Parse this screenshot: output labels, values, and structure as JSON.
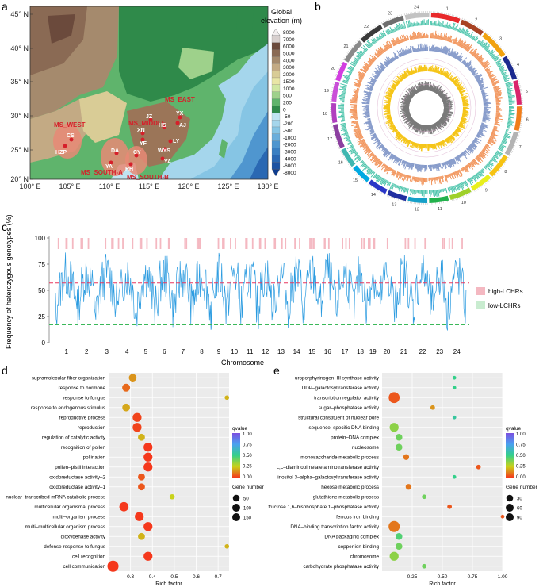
{
  "panels": {
    "a": "a",
    "b": "b",
    "c": "c",
    "d": "d",
    "e": "e"
  },
  "map": {
    "lat_labels": [
      "45° N",
      "40° N",
      "35° N",
      "30° N",
      "25° N",
      "20° N"
    ],
    "lon_labels": [
      "100° E",
      "105° E",
      "110° E",
      "115° E",
      "120° E",
      "125° E",
      "130° E"
    ],
    "legend_title_1": "Global",
    "legend_title_2": "elevation (m)",
    "legend_values": [
      "8000",
      "7000",
      "6000",
      "5000",
      "4000",
      "3000",
      "2000",
      "1500",
      "1000",
      "500",
      "200",
      "0",
      "-50",
      "-200",
      "-500",
      "-1000",
      "-2000",
      "-3000",
      "-4000",
      "-6000",
      "-8000"
    ],
    "legend_colors": [
      "#f3eff0",
      "#d8d0cf",
      "#6b4a3c",
      "#8a6a54",
      "#a58a6d",
      "#c3aa84",
      "#d9cc96",
      "#e9e6a6",
      "#cfe7a2",
      "#9ed18b",
      "#5fb46c",
      "#2f8a4a",
      "#bfe4f1",
      "#a5d6ec",
      "#86c5e4",
      "#6aaedb",
      "#4f96cf",
      "#3a7fc2",
      "#2a68b3",
      "#1c52a2",
      "#0e3c8f"
    ],
    "regions": [
      {
        "label": "MS_WEST",
        "color": "#d61f2a"
      },
      {
        "label": "MS_MIDDLE",
        "color": "#d61f2a"
      },
      {
        "label": "MS_EAST",
        "color": "#d61f2a"
      },
      {
        "label": "MS_SOUTH-A",
        "color": "#d61f2a"
      },
      {
        "label": "MS_SOUTH-B",
        "color": "#d61f2a"
      }
    ],
    "sites": [
      "CS",
      "HZP",
      "DA",
      "YA",
      "RH",
      "CY",
      "XN",
      "YF",
      "JZ",
      "HS",
      "AJ",
      "YX",
      "LY",
      "WYS",
      "YA"
    ]
  },
  "circos": {
    "chromosomes": [
      "1",
      "2",
      "3",
      "4",
      "5",
      "6",
      "7",
      "8",
      "9",
      "10",
      "11",
      "12",
      "13",
      "14",
      "15",
      "16",
      "17",
      "18",
      "19",
      "20",
      "21",
      "22",
      "23",
      "24"
    ],
    "colors": [
      "#e8292b",
      "#a84323",
      "#f1a20f",
      "#1b2a8f",
      "#d9256c",
      "#f07d1a",
      "#b3b3b3",
      "#f6c313",
      "#e8ef1d",
      "#9fd02a",
      "#22b14c",
      "#16a0c8",
      "#212fa0",
      "#2a36c7",
      "#00a9e2",
      "#3fb7b0",
      "#8c3fa0",
      "#b03fbf",
      "#c950d8",
      "#d23fe0",
      "#8a8a8a",
      "#3a3a3a",
      "#6d6d6d",
      "#c3c3c3"
    ],
    "track_colors": [
      "#3cbfa4",
      "#f08a4b",
      "#7f95c7",
      "#f5c518",
      "#7a7a7a"
    ]
  },
  "manhattan": {
    "ylabel": "Frequency of heterozygous genotypes (%)",
    "xlabel": "Chromosome",
    "yticks": [
      "0",
      "25",
      "50",
      "75",
      "100"
    ],
    "legend": [
      {
        "label": "high-LCHRs",
        "color": "#f4b8c1"
      },
      {
        "label": "low-LCHRs",
        "color": "#c9ecd0"
      }
    ],
    "high_threshold": 57,
    "low_threshold": 17,
    "line_color": "#2b9be0"
  },
  "chart_data": [
    {
      "type": "scatter",
      "panel": "d",
      "xlabel": "Rich factor",
      "xlim": [
        0.2,
        0.75
      ],
      "xticks": [
        "0.3",
        "0.4",
        "0.5",
        "0.6",
        "0.7"
      ],
      "categories": [
        "supramolecular fiber organization",
        "response to hormone",
        "response to fungus",
        "response to endogenous stimulus",
        "reproductive process",
        "reproduction",
        "regulation of catalytic activity",
        "recognition of pollen",
        "pollination",
        "pollen–pistil interaction",
        "oxidoreductase activity–2",
        "oxidoreductase activity–1",
        "nuclear–transcribed mRNA catabolic process",
        "multicellular organismal process",
        "multi–organism process",
        "multi–multicellular organism process",
        "dioxygenase activity",
        "defense response to fungus",
        "cell recognition",
        "cell communication"
      ],
      "x": [
        0.31,
        0.28,
        0.74,
        0.28,
        0.33,
        0.33,
        0.35,
        0.38,
        0.38,
        0.38,
        0.35,
        0.35,
        0.49,
        0.27,
        0.34,
        0.38,
        0.35,
        0.74,
        0.38,
        0.22
      ],
      "qvalue": [
        0.15,
        0.08,
        0.2,
        0.18,
        0.02,
        0.02,
        0.2,
        0.0,
        0.0,
        0.0,
        0.05,
        0.05,
        0.25,
        0.0,
        0.0,
        0.0,
        0.2,
        0.2,
        0.0,
        0.0
      ],
      "gene_number": [
        70,
        75,
        15,
        70,
        100,
        100,
        55,
        100,
        100,
        100,
        55,
        55,
        25,
        110,
        100,
        100,
        55,
        15,
        100,
        170
      ],
      "color_legend_title": "qvalue",
      "color_legend_ticks": [
        "1.00",
        "0.75",
        "0.50",
        "0.25",
        "0.00"
      ],
      "size_legend_title": "Gene  number",
      "size_legend": [
        "50",
        "100",
        "150"
      ],
      "size_values": [
        50,
        100,
        150
      ]
    },
    {
      "type": "scatter",
      "panel": "e",
      "xlabel": "Rich factor",
      "xlim": [
        0.0,
        1.0
      ],
      "xticks": [
        "0.25",
        "0.50",
        "0.75",
        "1.00"
      ],
      "categories": [
        "uroporphyrinogen–III synthase activity",
        "UDP–galactosyltransferase activity",
        "transcription regulator activity",
        "sugar–phosphatase activity",
        "structural constituent of nuclear pore",
        "sequence–specific DNA binding",
        "protein–DNA complex",
        "nucleosome",
        "monosaccharide metabolic process",
        "L,L–diaminopimelate aminotransferase activity",
        "inositol 3–alpha–galactosyltransferase activity",
        "hexose metabolic process",
        "glutathione metabolic process",
        "fructose 1,6–bisphosphate 1–phosphatase activity",
        "ferrous iron binding",
        "DNA–binding transcription factor activity",
        "DNA packaging complex",
        "copper ion binding",
        "chromosome",
        "carbohydrate phosphatase activity"
      ],
      "x": [
        0.6,
        0.6,
        0.1,
        0.42,
        0.6,
        0.1,
        0.14,
        0.14,
        0.2,
        0.8,
        0.6,
        0.22,
        0.35,
        0.56,
        1.0,
        0.1,
        0.14,
        0.14,
        0.1,
        0.35
      ],
      "qvalue": [
        0.5,
        0.5,
        0.05,
        0.15,
        0.55,
        0.35,
        0.4,
        0.4,
        0.1,
        0.05,
        0.5,
        0.1,
        0.4,
        0.05,
        0.05,
        0.1,
        0.45,
        0.4,
        0.35,
        0.4
      ],
      "gene_number": [
        5,
        5,
        95,
        10,
        5,
        60,
        30,
        30,
        20,
        10,
        5,
        20,
        10,
        10,
        5,
        100,
        30,
        30,
        60,
        10
      ],
      "color_legend_title": "qvalue",
      "color_legend_ticks": [
        "1.00",
        "0.75",
        "0.50",
        "0.25",
        "0.00"
      ],
      "size_legend_title": "Gene  number",
      "size_legend": [
        "30",
        "60",
        "90"
      ],
      "size_values": [
        30,
        60,
        90
      ]
    }
  ]
}
